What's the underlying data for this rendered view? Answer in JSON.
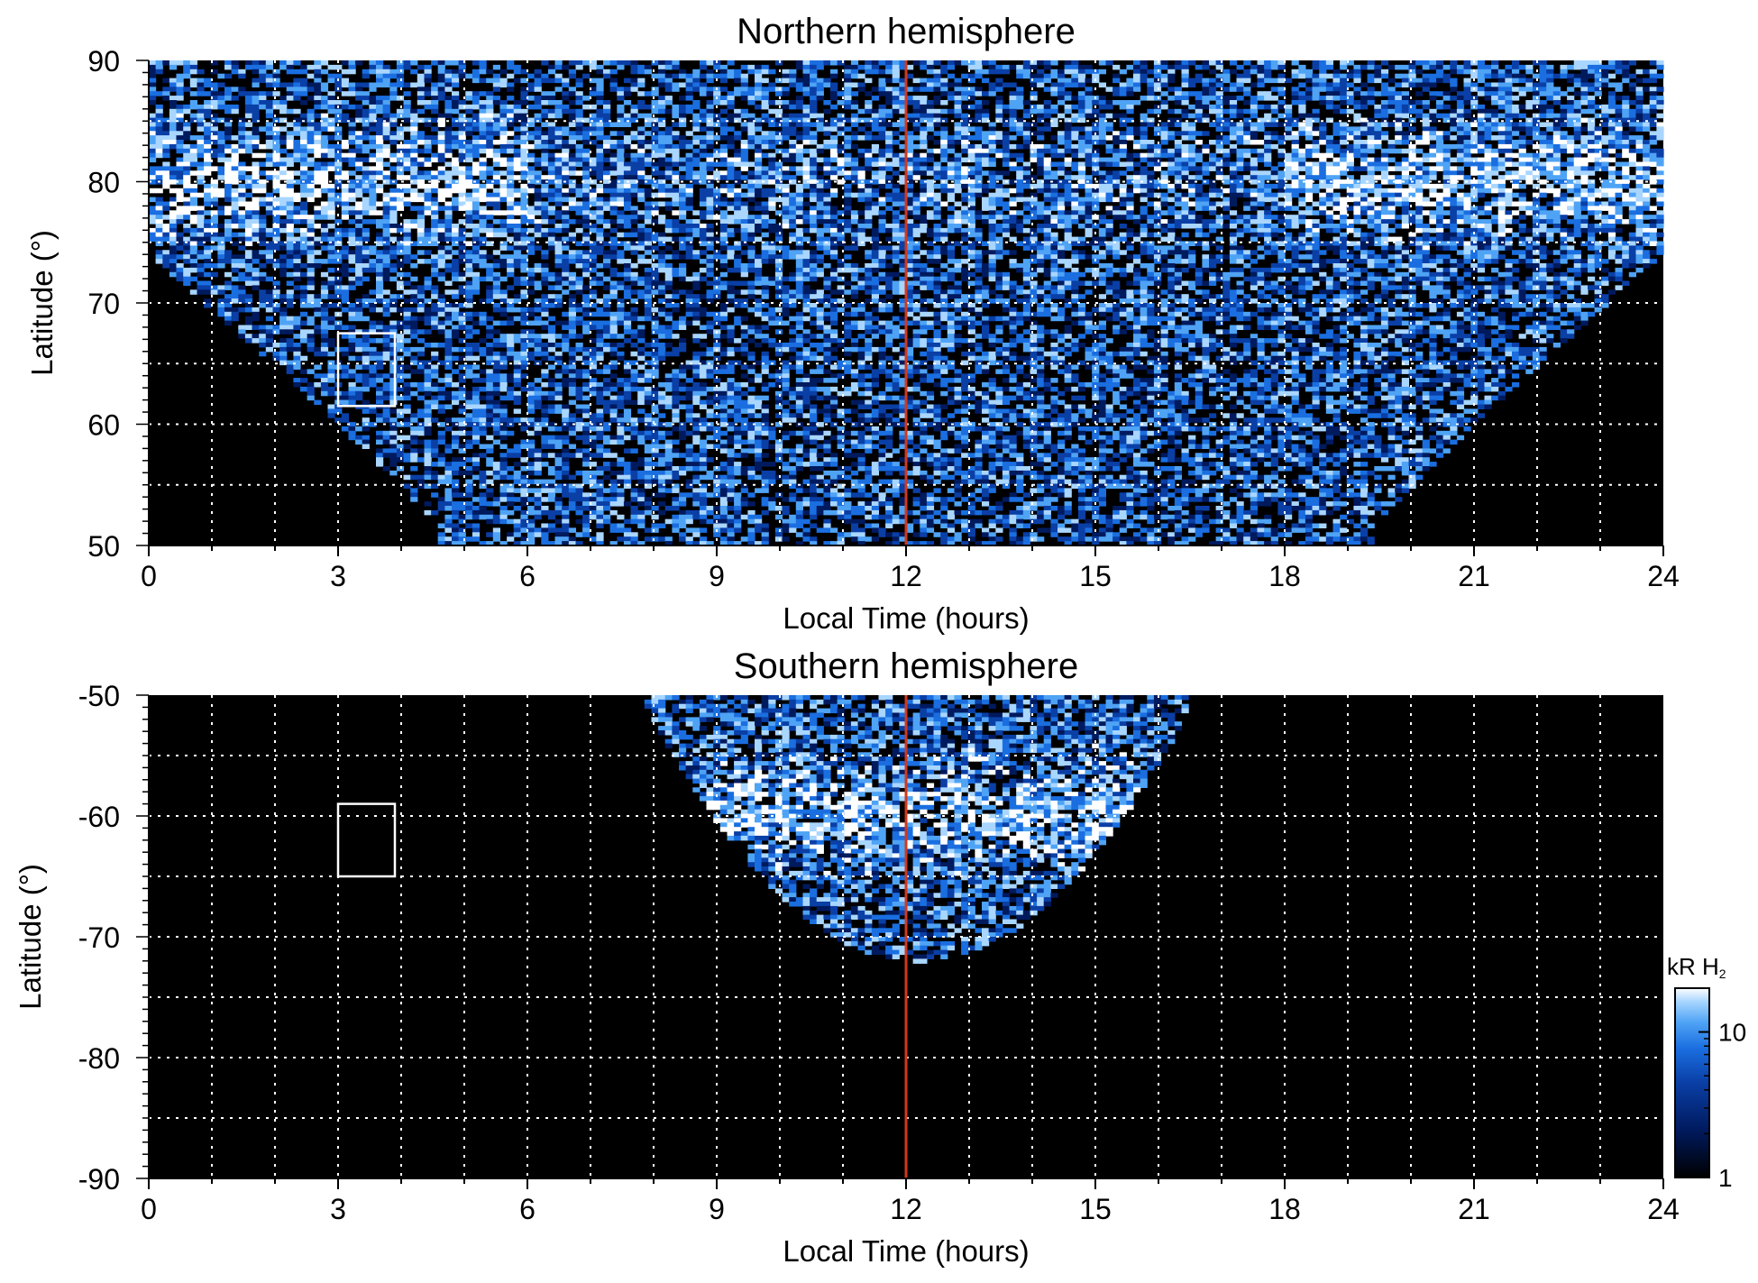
{
  "colors": {
    "background": "#000000",
    "grid": "#ffffff",
    "noon_line": "#d2381c",
    "box": "#ffffff",
    "colormap": [
      "#000000",
      "#001a5e",
      "#0a3fa6",
      "#1a6ee0",
      "#4fa3f5",
      "#a9d6ff",
      "#ffffff"
    ]
  },
  "chart_data": [
    {
      "type": "heatmap",
      "title": "Northern hemisphere",
      "xlabel": "Local Time (hours)",
      "ylabel": "Latitude (°)",
      "xlim": [
        0,
        24
      ],
      "ylim": [
        50,
        90
      ],
      "xticks": [
        0,
        3,
        6,
        9,
        12,
        15,
        18,
        21,
        24
      ],
      "yticks": [
        50,
        60,
        70,
        80,
        90
      ],
      "grid": true,
      "noon_line_lt": 12,
      "box": {
        "lt": [
          3,
          3.9
        ],
        "lat": [
          61.5,
          67.5
        ]
      },
      "coverage": {
        "center_lt": 12,
        "lat_floor": 50,
        "rim_lat_at_0h": 74,
        "edge_lt_at_floor": [
          4.5,
          19.5
        ]
      }
    },
    {
      "type": "heatmap",
      "title": "Southern hemisphere",
      "xlabel": "Local Time (hours)",
      "ylabel": "Latitude (°)",
      "xlim": [
        0,
        24
      ],
      "ylim": [
        -90,
        -50
      ],
      "xticks": [
        0,
        3,
        6,
        9,
        12,
        15,
        18,
        21,
        24
      ],
      "yticks": [
        -90,
        -80,
        -70,
        -60,
        -50
      ],
      "grid": true,
      "noon_line_lt": 12,
      "box": {
        "lt": [
          3,
          3.9
        ],
        "lat": [
          -65,
          -59
        ]
      },
      "coverage": {
        "center_lt": 12.2,
        "lat_top": -50,
        "lat_bottom": -72,
        "edge_lt_at_top": [
          7.9,
          16.5
        ]
      },
      "colorbar": {
        "label_main": "kR H",
        "label_sub": "2",
        "scale": "log",
        "range": [
          1,
          20
        ],
        "ticks": [
          1,
          10
        ]
      }
    }
  ]
}
